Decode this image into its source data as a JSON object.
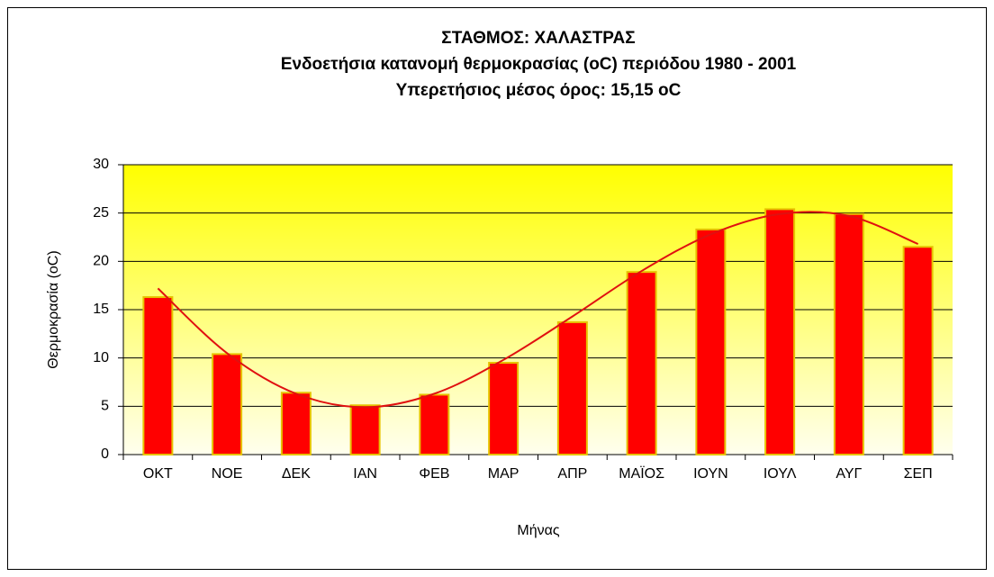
{
  "chart_data": {
    "type": "bar",
    "title": [
      "ΣΤΑΘΜΟΣ: ΧΑΛΑΣΤΡΑΣ",
      "Ενδοετήσια κατανομή θερμοκρασίας (oC) περιόδου 1980 - 2001",
      "Υπερετήσιος μέσος όρος: 15,15 oC"
    ],
    "x_label": "Μήνας",
    "y_label": "Θερμοκρασία (oC)",
    "categories": [
      "ΟΚΤ",
      "ΝΟΕ",
      "ΔΕΚ",
      "ΙΑΝ",
      "ΦΕΒ",
      "ΜΑΡ",
      "ΑΠΡ",
      "ΜΑΪΟΣ",
      "ΙΟΥΝ",
      "ΙΟΥΛ",
      "ΑΥΓ",
      "ΣΕΠ"
    ],
    "values": [
      16.3,
      10.4,
      6.4,
      5.1,
      6.2,
      9.5,
      13.7,
      18.9,
      23.3,
      25.4,
      24.9,
      21.5
    ],
    "color": "#ff0000",
    "edge_color": "#e6c200",
    "trendline": {
      "type": "line",
      "color": "#e01010",
      "values": [
        17.2,
        10.5,
        6.3,
        4.9,
        6.3,
        9.8,
        14.3,
        19.0,
        22.8,
        24.9,
        24.7,
        21.8
      ]
    },
    "ylim": [
      0,
      30
    ],
    "yticks": [
      0,
      5,
      10,
      15,
      20,
      25,
      30
    ],
    "grid": true
  }
}
